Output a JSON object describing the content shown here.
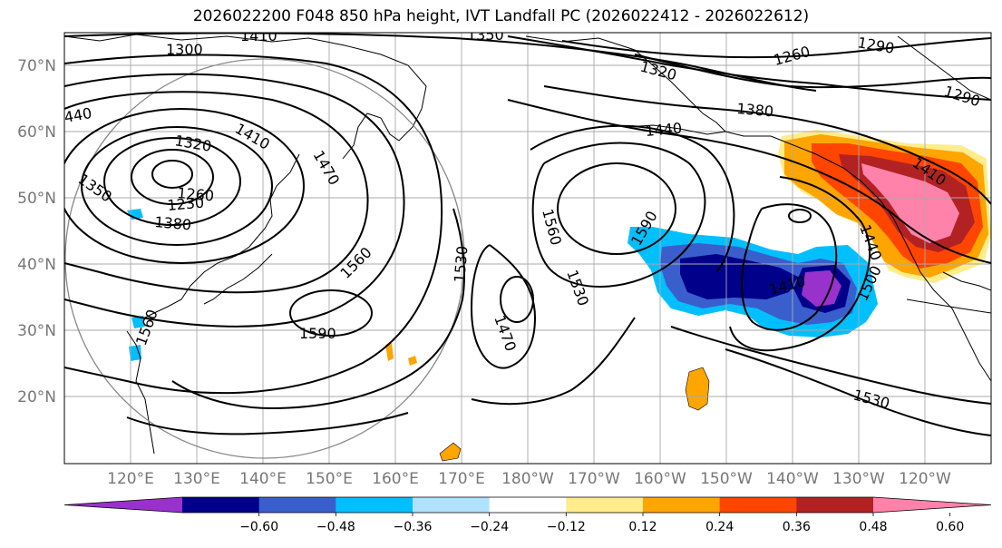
{
  "title": "2026022200 F048 850 hPa height, IVT Landfall PC (2026022412 - 2026022612)",
  "map": {
    "lat_labels": [
      "70°N",
      "60°N",
      "50°N",
      "40°N",
      "30°N",
      "20°N"
    ],
    "lon_labels": [
      "120°E",
      "130°E",
      "140°E",
      "150°E",
      "160°E",
      "170°E",
      "180°W",
      "170°W",
      "160°W",
      "150°W",
      "140°W",
      "130°W",
      "120°W"
    ],
    "contour_labels": [
      {
        "text": "1300"
      },
      {
        "text": "1410"
      },
      {
        "text": "1350"
      },
      {
        "text": "1320"
      },
      {
        "text": "1260"
      },
      {
        "text": "1290"
      },
      {
        "text": "1290"
      },
      {
        "text": "1380"
      },
      {
        "text": "1440"
      },
      {
        "text": "440"
      },
      {
        "text": "1320"
      },
      {
        "text": "1410"
      },
      {
        "text": "1470"
      },
      {
        "text": "1350"
      },
      {
        "text": "1260"
      },
      {
        "text": "1230"
      },
      {
        "text": "1380"
      },
      {
        "text": "1560"
      },
      {
        "text": "1530"
      },
      {
        "text": "1590"
      },
      {
        "text": "1560"
      },
      {
        "text": "1590"
      },
      {
        "text": "1560"
      },
      {
        "text": "1530"
      },
      {
        "text": "1470"
      },
      {
        "text": "1410"
      },
      {
        "text": "1410"
      },
      {
        "text": "1440"
      },
      {
        "text": "1500"
      },
      {
        "text": "1530"
      }
    ]
  },
  "colorbar": {
    "colors": [
      "#9932cc",
      "#00008b",
      "#3a5fcd",
      "#00bfff",
      "#b0e2ff",
      "#ffffff",
      "#ffec8b",
      "#ffa500",
      "#ff4500",
      "#b22222",
      "#ff82ab"
    ],
    "tick_labels": [
      "−0.60",
      "−0.48",
      "−0.36",
      "−0.24",
      "−0.12",
      "0.12",
      "0.24",
      "0.36",
      "0.48",
      "0.60"
    ]
  }
}
